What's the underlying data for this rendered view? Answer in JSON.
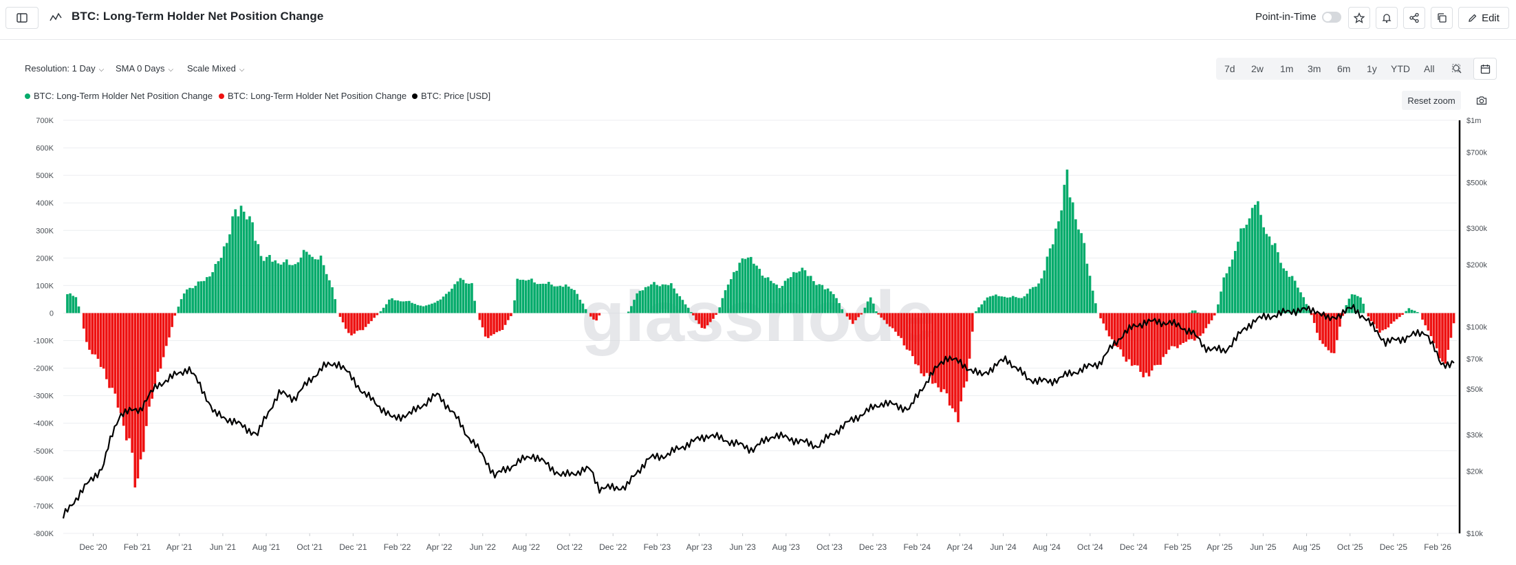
{
  "header": {
    "title": "BTC: Long-Term Holder Net Position Change",
    "point_in_time_label": "Point-in-Time",
    "edit_label": "Edit"
  },
  "controls": {
    "resolution": "Resolution: 1 Day",
    "sma": "SMA 0 Days",
    "scale": "Scale Mixed",
    "ranges": [
      "7d",
      "2w",
      "1m",
      "3m",
      "6m",
      "1y",
      "YTD",
      "All"
    ],
    "reset_zoom": "Reset zoom"
  },
  "legend": [
    {
      "label": "BTC: Long-Term Holder Net Position Change",
      "color": "#05ab6b"
    },
    {
      "label": "BTC: Long-Term Holder Net Position Change",
      "color": "#ee1111"
    },
    {
      "label": "BTC: Price [USD]",
      "color": "#000000"
    }
  ],
  "watermark": "glassnode",
  "chart_data": {
    "type": "area",
    "title": "BTC: Long-Term Holder Net Position Change",
    "x_ticks": [
      "Dec '20",
      "Feb '21",
      "Apr '21",
      "Jun '21",
      "Aug '21",
      "Oct '21",
      "Dec '21",
      "Feb '22",
      "Apr '22",
      "Jun '22",
      "Aug '22",
      "Oct '22",
      "Dec '22",
      "Feb '23",
      "Apr '23",
      "Jun '23",
      "Aug '23",
      "Oct '23",
      "Dec '23",
      "Feb '24",
      "Apr '24",
      "Jun '24",
      "Aug '24",
      "Oct '24",
      "Dec '24",
      "Feb '25",
      "Apr '25",
      "Jun '25",
      "Aug '25",
      "Oct '25",
      "Dec '25",
      "Feb '26"
    ],
    "left_axis": {
      "ticks": [
        "700K",
        "600K",
        "500K",
        "400K",
        "300K",
        "200K",
        "100K",
        "0",
        "-100K",
        "-200K",
        "-300K",
        "-400K",
        "-500K",
        "-600K",
        "-700K",
        "-800K"
      ],
      "range": [
        -800000,
        700000
      ]
    },
    "right_axis": {
      "ticks": [
        "$1m",
        "$700k",
        "$500k",
        "$300k",
        "$200k",
        "$100k",
        "$70k",
        "$50k",
        "$30k",
        "$20k",
        "$10k"
      ],
      "scale": "log",
      "range": [
        10000,
        1000000
      ]
    },
    "series": [
      {
        "name": "BTC: Long-Term Holder Net Position Change",
        "polarity": "positive",
        "color": "#05ab6b",
        "points": [
          [
            "2020-10-20",
            0
          ],
          [
            "2020-10-25",
            90000
          ],
          [
            "2020-11-05",
            60000
          ],
          [
            "2020-11-12",
            0
          ],
          [
            "2021-03-25",
            0
          ],
          [
            "2021-04-08",
            90000
          ],
          [
            "2021-05-05",
            130000
          ],
          [
            "2021-05-25",
            200000
          ],
          [
            "2021-06-15",
            380000
          ],
          [
            "2021-06-28",
            430000
          ],
          [
            "2021-07-08",
            360000
          ],
          [
            "2021-07-25",
            220000
          ],
          [
            "2021-08-15",
            205000
          ],
          [
            "2021-09-05",
            190000
          ],
          [
            "2021-09-25",
            240000
          ],
          [
            "2021-10-15",
            210000
          ],
          [
            "2021-11-01",
            100000
          ],
          [
            "2021-11-08",
            0
          ],
          [
            "2022-01-05",
            0
          ],
          [
            "2022-01-20",
            55000
          ],
          [
            "2022-02-15",
            45000
          ],
          [
            "2022-03-10",
            25000
          ],
          [
            "2022-04-05",
            60000
          ],
          [
            "2022-04-25",
            130000
          ],
          [
            "2022-05-15",
            120000
          ],
          [
            "2022-05-22",
            0
          ],
          [
            "2022-07-12",
            0
          ],
          [
            "2022-07-18",
            140000
          ],
          [
            "2022-08-15",
            120000
          ],
          [
            "2022-09-10",
            110000
          ],
          [
            "2022-10-05",
            100000
          ],
          [
            "2022-10-25",
            0
          ],
          [
            "2022-12-20",
            0
          ],
          [
            "2023-01-05",
            90000
          ],
          [
            "2023-01-25",
            115000
          ],
          [
            "2023-02-20",
            110000
          ],
          [
            "2023-03-20",
            0
          ],
          [
            "2023-04-25",
            0
          ],
          [
            "2023-05-10",
            120000
          ],
          [
            "2023-06-05",
            235000
          ],
          [
            "2023-06-25",
            160000
          ],
          [
            "2023-07-20",
            100000
          ],
          [
            "2023-08-20",
            180000
          ],
          [
            "2023-09-10",
            120000
          ],
          [
            "2023-10-05",
            80000
          ],
          [
            "2023-10-20",
            0
          ],
          [
            "2023-11-15",
            0
          ],
          [
            "2023-11-25",
            70000
          ],
          [
            "2023-12-05",
            0
          ],
          [
            "2024-04-20",
            0
          ],
          [
            "2024-05-10",
            70000
          ],
          [
            "2024-06-25",
            60000
          ],
          [
            "2024-07-20",
            120000
          ],
          [
            "2024-08-05",
            250000
          ],
          [
            "2024-08-28",
            530000
          ],
          [
            "2024-09-20",
            270000
          ],
          [
            "2024-10-10",
            0
          ],
          [
            "2025-02-15",
            0
          ],
          [
            "2025-02-22",
            15000
          ],
          [
            "2025-03-01",
            0
          ],
          [
            "2025-03-25",
            0
          ],
          [
            "2025-04-05",
            130000
          ],
          [
            "2025-04-25",
            280000
          ],
          [
            "2025-05-18",
            440000
          ],
          [
            "2025-06-10",
            290000
          ],
          [
            "2025-07-01",
            170000
          ],
          [
            "2025-07-20",
            100000
          ],
          [
            "2025-08-05",
            0
          ],
          [
            "2025-09-20",
            0
          ],
          [
            "2025-10-01",
            80000
          ],
          [
            "2025-10-15",
            60000
          ],
          [
            "2025-10-22",
            0
          ],
          [
            "2025-12-15",
            0
          ],
          [
            "2025-12-20",
            20000
          ],
          [
            "2026-01-05",
            0
          ]
        ]
      },
      {
        "name": "BTC: Long-Term Holder Net Position Change",
        "polarity": "negative",
        "color": "#ee1111",
        "points": [
          [
            "2020-11-12",
            0
          ],
          [
            "2020-11-20",
            -120000
          ],
          [
            "2020-12-15",
            -230000
          ],
          [
            "2021-01-05",
            -380000
          ],
          [
            "2021-01-20",
            -520000
          ],
          [
            "2021-01-28",
            -700000
          ],
          [
            "2021-02-05",
            -560000
          ],
          [
            "2021-02-25",
            -260000
          ],
          [
            "2021-03-10",
            -160000
          ],
          [
            "2021-03-25",
            0
          ],
          [
            "2021-11-08",
            0
          ],
          [
            "2021-11-25",
            -90000
          ],
          [
            "2021-12-15",
            -60000
          ],
          [
            "2022-01-05",
            0
          ],
          [
            "2022-05-22",
            0
          ],
          [
            "2022-06-05",
            -100000
          ],
          [
            "2022-06-25",
            -70000
          ],
          [
            "2022-07-12",
            0
          ],
          [
            "2022-10-25",
            0
          ],
          [
            "2022-11-05",
            -35000
          ],
          [
            "2022-11-12",
            0
          ],
          [
            "2023-03-20",
            0
          ],
          [
            "2023-04-05",
            -70000
          ],
          [
            "2023-04-25",
            0
          ],
          [
            "2023-10-20",
            0
          ],
          [
            "2023-11-01",
            -40000
          ],
          [
            "2023-11-15",
            0
          ],
          [
            "2023-12-05",
            0
          ],
          [
            "2024-01-05",
            -90000
          ],
          [
            "2024-02-05",
            -230000
          ],
          [
            "2024-03-05",
            -300000
          ],
          [
            "2024-03-28",
            -410000
          ],
          [
            "2024-04-10",
            -250000
          ],
          [
            "2024-04-20",
            0
          ],
          [
            "2024-10-10",
            0
          ],
          [
            "2024-11-01",
            -120000
          ],
          [
            "2024-11-25",
            -200000
          ],
          [
            "2024-12-20",
            -250000
          ],
          [
            "2025-01-20",
            -140000
          ],
          [
            "2025-02-15",
            -110000
          ],
          [
            "2025-03-05",
            -90000
          ],
          [
            "2025-03-25",
            0
          ],
          [
            "2025-08-05",
            0
          ],
          [
            "2025-08-20",
            -120000
          ],
          [
            "2025-09-05",
            -170000
          ],
          [
            "2025-09-20",
            0
          ],
          [
            "2025-10-22",
            0
          ],
          [
            "2025-11-10",
            -80000
          ],
          [
            "2025-12-15",
            0
          ],
          [
            "2026-01-05",
            0
          ],
          [
            "2026-01-25",
            -120000
          ],
          [
            "2026-02-10",
            -210000
          ],
          [
            "2026-02-25",
            0
          ]
        ]
      },
      {
        "name": "BTC: Price [USD]",
        "axis": "right",
        "color": "#000000",
        "points": [
          [
            "2020-10-20",
            12000
          ],
          [
            "2020-11-15",
            16000
          ],
          [
            "2020-12-15",
            21000
          ],
          [
            "2021-01-08",
            38000
          ],
          [
            "2021-02-05",
            40000
          ],
          [
            "2021-03-01",
            52000
          ],
          [
            "2021-04-14",
            63000
          ],
          [
            "2021-05-20",
            38000
          ],
          [
            "2021-06-15",
            35000
          ],
          [
            "2021-07-20",
            30000
          ],
          [
            "2021-08-20",
            48000
          ],
          [
            "2021-09-10",
            45000
          ],
          [
            "2021-10-20",
            64000
          ],
          [
            "2021-11-10",
            67000
          ],
          [
            "2021-12-15",
            48000
          ],
          [
            "2022-01-25",
            36000
          ],
          [
            "2022-02-20",
            38000
          ],
          [
            "2022-03-30",
            47000
          ],
          [
            "2022-05-10",
            30000
          ],
          [
            "2022-06-18",
            19000
          ],
          [
            "2022-08-10",
            24000
          ],
          [
            "2022-09-20",
            19000
          ],
          [
            "2022-10-30",
            20500
          ],
          [
            "2022-11-12",
            16500
          ],
          [
            "2022-12-20",
            16800
          ],
          [
            "2023-01-20",
            23000
          ],
          [
            "2023-02-15",
            24000
          ],
          [
            "2023-03-15",
            27000
          ],
          [
            "2023-04-15",
            30000
          ],
          [
            "2023-06-15",
            25500
          ],
          [
            "2023-07-15",
            30000
          ],
          [
            "2023-09-15",
            26500
          ],
          [
            "2023-10-25",
            34000
          ],
          [
            "2023-12-15",
            43000
          ],
          [
            "2024-01-22",
            40000
          ],
          [
            "2024-03-14",
            72000
          ],
          [
            "2024-05-01",
            58000
          ],
          [
            "2024-06-05",
            70000
          ],
          [
            "2024-07-05",
            56000
          ],
          [
            "2024-08-05",
            54000
          ],
          [
            "2024-10-15",
            67000
          ],
          [
            "2024-11-20",
            95000
          ],
          [
            "2024-12-17",
            106000
          ],
          [
            "2025-01-20",
            105000
          ],
          [
            "2025-02-20",
            95000
          ],
          [
            "2025-03-10",
            80000
          ],
          [
            "2025-04-08",
            76000
          ],
          [
            "2025-05-20",
            108000
          ],
          [
            "2025-07-14",
            120000
          ],
          [
            "2025-08-14",
            121000
          ],
          [
            "2025-09-01",
            108000
          ],
          [
            "2025-10-06",
            124000
          ],
          [
            "2025-11-20",
            84000
          ],
          [
            "2025-12-15",
            88000
          ],
          [
            "2026-01-15",
            95000
          ],
          [
            "2026-02-05",
            66000
          ],
          [
            "2026-02-25",
            67000
          ]
        ]
      }
    ]
  }
}
